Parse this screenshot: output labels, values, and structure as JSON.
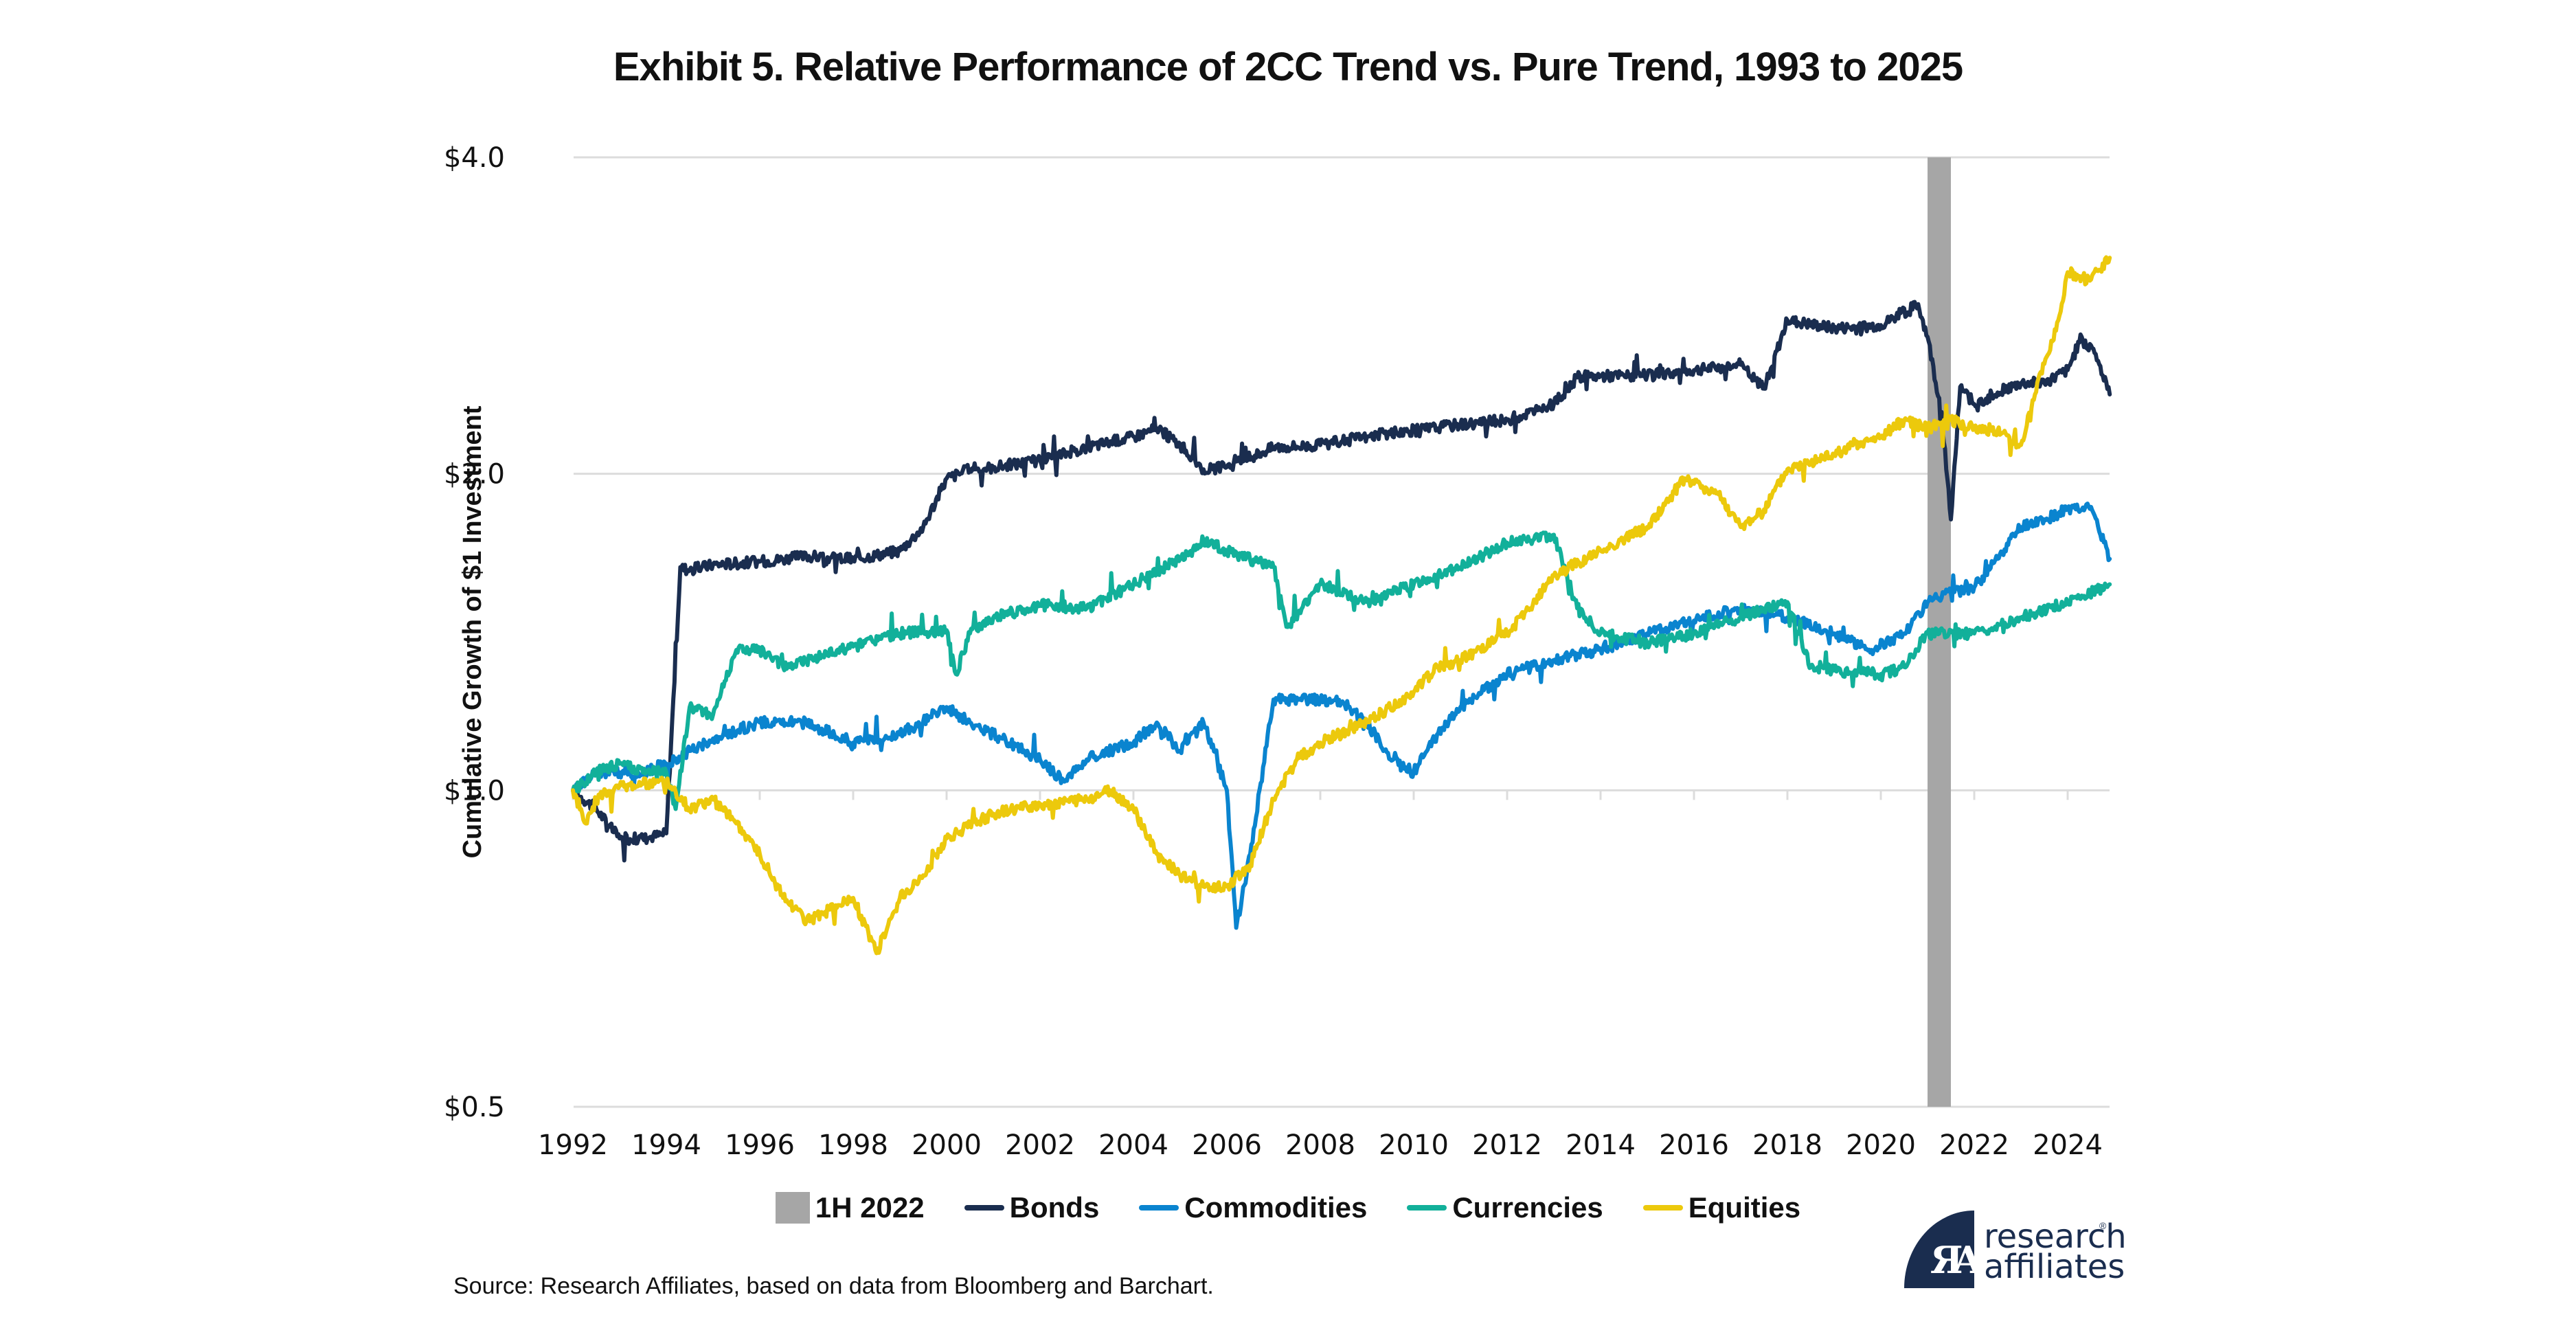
{
  "chart_data": {
    "type": "line",
    "title": "Exhibit 5. Relative Performance of 2CC Trend vs. Pure Trend, 1993 to 2025",
    "xlabel": "",
    "ylabel": "Cumulative Growth of $1 Investment",
    "y_scale": "log2",
    "ylim": [
      0.5,
      4.0
    ],
    "y_ticks": [
      {
        "value": 4.0,
        "label": "$4.0"
      },
      {
        "value": 2.0,
        "label": "$2.0"
      },
      {
        "value": 1.0,
        "label": "$1.0"
      },
      {
        "value": 0.5,
        "label": "$0.5"
      }
    ],
    "xlim": [
      1993.0,
      2025.9
    ],
    "x_ticks": [
      {
        "value": 1993,
        "label": "1992"
      },
      {
        "value": 1995,
        "label": "1994"
      },
      {
        "value": 1997,
        "label": "1996"
      },
      {
        "value": 1999,
        "label": "1998"
      },
      {
        "value": 2001,
        "label": "2000"
      },
      {
        "value": 2003,
        "label": "2002"
      },
      {
        "value": 2005,
        "label": "2004"
      },
      {
        "value": 2007,
        "label": "2006"
      },
      {
        "value": 2009,
        "label": "2008"
      },
      {
        "value": 2011,
        "label": "2010"
      },
      {
        "value": 2013,
        "label": "2012"
      },
      {
        "value": 2015,
        "label": "2014"
      },
      {
        "value": 2017,
        "label": "2016"
      },
      {
        "value": 2019,
        "label": "2018"
      },
      {
        "value": 2021,
        "label": "2020"
      },
      {
        "value": 2023,
        "label": "2022"
      },
      {
        "value": 2025,
        "label": "2024"
      }
    ],
    "grid": "horizontal",
    "shaded_region": {
      "name": "1H 2022",
      "x_start": 2022.0,
      "x_end": 2022.5,
      "color": "#a6a6a6"
    },
    "legend_position": "bottom",
    "series": [
      {
        "name": "Bonds",
        "color": "#1a2d4f",
        "points": [
          [
            1993,
            1.0
          ],
          [
            1993.5,
            0.96
          ],
          [
            1994,
            0.9
          ],
          [
            1994.5,
            0.9
          ],
          [
            1995,
            0.91
          ],
          [
            1995.3,
            1.63
          ],
          [
            1995.5,
            1.62
          ],
          [
            1996,
            1.64
          ],
          [
            1997,
            1.65
          ],
          [
            1998,
            1.67
          ],
          [
            1999,
            1.66
          ],
          [
            2000,
            1.69
          ],
          [
            2000.5,
            1.78
          ],
          [
            2001,
            1.98
          ],
          [
            2001.5,
            2.02
          ],
          [
            2002,
            2.03
          ],
          [
            2003,
            2.06
          ],
          [
            2004,
            2.12
          ],
          [
            2005,
            2.17
          ],
          [
            2005.5,
            2.21
          ],
          [
            2006,
            2.13
          ],
          [
            2006.5,
            2.02
          ],
          [
            2007,
            2.03
          ],
          [
            2008,
            2.12
          ],
          [
            2009,
            2.13
          ],
          [
            2010,
            2.17
          ],
          [
            2011,
            2.2
          ],
          [
            2012,
            2.23
          ],
          [
            2013,
            2.25
          ],
          [
            2014,
            2.33
          ],
          [
            2014.5,
            2.47
          ],
          [
            2015,
            2.48
          ],
          [
            2016,
            2.48
          ],
          [
            2017,
            2.51
          ],
          [
            2018,
            2.54
          ],
          [
            2018.5,
            2.41
          ],
          [
            2019,
            2.8
          ],
          [
            2020,
            2.75
          ],
          [
            2021,
            2.77
          ],
          [
            2021.8,
            2.9
          ],
          [
            2022.0,
            2.7
          ],
          [
            2022.3,
            2.29
          ],
          [
            2022.5,
            1.81
          ],
          [
            2022.7,
            2.42
          ],
          [
            2023,
            2.33
          ],
          [
            2023.5,
            2.39
          ],
          [
            2024,
            2.44
          ],
          [
            2024.5,
            2.44
          ],
          [
            2025,
            2.51
          ],
          [
            2025.3,
            2.7
          ],
          [
            2025.6,
            2.6
          ],
          [
            2025.9,
            2.38
          ]
        ]
      },
      {
        "name": "Commodities",
        "color": "#0a84cf",
        "points": [
          [
            1993,
            1.0
          ],
          [
            1993.5,
            1.04
          ],
          [
            1994,
            1.04
          ],
          [
            1994.5,
            1.04
          ],
          [
            1995,
            1.06
          ],
          [
            1995.5,
            1.09
          ],
          [
            1996,
            1.12
          ],
          [
            1997,
            1.16
          ],
          [
            1998,
            1.16
          ],
          [
            1999,
            1.11
          ],
          [
            2000,
            1.13
          ],
          [
            2001,
            1.2
          ],
          [
            2001.5,
            1.16
          ],
          [
            2002,
            1.13
          ],
          [
            2003,
            1.07
          ],
          [
            2003.5,
            1.02
          ],
          [
            2004,
            1.07
          ],
          [
            2005,
            1.11
          ],
          [
            2005.5,
            1.16
          ],
          [
            2006,
            1.09
          ],
          [
            2006.5,
            1.16
          ],
          [
            2007,
            1.0
          ],
          [
            2007.2,
            0.74
          ],
          [
            2007.5,
            0.87
          ],
          [
            2008,
            1.22
          ],
          [
            2009,
            1.22
          ],
          [
            2009.5,
            1.21
          ],
          [
            2010,
            1.16
          ],
          [
            2010.5,
            1.07
          ],
          [
            2011,
            1.04
          ],
          [
            2011.5,
            1.13
          ],
          [
            2012,
            1.2
          ],
          [
            2013,
            1.29
          ],
          [
            2014,
            1.33
          ],
          [
            2015,
            1.36
          ],
          [
            2016,
            1.41
          ],
          [
            2017,
            1.45
          ],
          [
            2018,
            1.49
          ],
          [
            2019,
            1.46
          ],
          [
            2020,
            1.41
          ],
          [
            2020.8,
            1.36
          ],
          [
            2021.5,
            1.41
          ],
          [
            2022,
            1.51
          ],
          [
            2022.5,
            1.54
          ],
          [
            2023,
            1.56
          ],
          [
            2023.5,
            1.66
          ],
          [
            2024,
            1.78
          ],
          [
            2024.5,
            1.81
          ],
          [
            2025,
            1.85
          ],
          [
            2025.5,
            1.86
          ],
          [
            2025.9,
            1.66
          ]
        ]
      },
      {
        "name": "Currencies",
        "color": "#12b09a",
        "points": [
          [
            1993,
            1.0
          ],
          [
            1993.5,
            1.04
          ],
          [
            1994,
            1.06
          ],
          [
            1994.5,
            1.04
          ],
          [
            1995,
            1.04
          ],
          [
            1995.2,
            0.96
          ],
          [
            1995.5,
            1.2
          ],
          [
            1996,
            1.18
          ],
          [
            1996.5,
            1.36
          ],
          [
            1997,
            1.36
          ],
          [
            1997.5,
            1.31
          ],
          [
            1998,
            1.33
          ],
          [
            1999,
            1.37
          ],
          [
            2000,
            1.41
          ],
          [
            2001,
            1.42
          ],
          [
            2001.2,
            1.29
          ],
          [
            2001.5,
            1.41
          ],
          [
            2002,
            1.46
          ],
          [
            2003,
            1.5
          ],
          [
            2004,
            1.49
          ],
          [
            2005,
            1.57
          ],
          [
            2006,
            1.66
          ],
          [
            2006.5,
            1.73
          ],
          [
            2007,
            1.69
          ],
          [
            2008,
            1.63
          ],
          [
            2008.3,
            1.43
          ],
          [
            2009,
            1.57
          ],
          [
            2010,
            1.51
          ],
          [
            2011,
            1.57
          ],
          [
            2012,
            1.63
          ],
          [
            2013,
            1.72
          ],
          [
            2014,
            1.75
          ],
          [
            2014.5,
            1.49
          ],
          [
            2015,
            1.41
          ],
          [
            2016,
            1.38
          ],
          [
            2017,
            1.41
          ],
          [
            2018,
            1.46
          ],
          [
            2019,
            1.51
          ],
          [
            2019.5,
            1.31
          ],
          [
            2020,
            1.3
          ],
          [
            2021,
            1.29
          ],
          [
            2021.5,
            1.31
          ],
          [
            2022,
            1.41
          ],
          [
            2023,
            1.41
          ],
          [
            2024,
            1.46
          ],
          [
            2025,
            1.51
          ],
          [
            2025.9,
            1.57
          ]
        ]
      },
      {
        "name": "Equities",
        "color": "#ecc90c",
        "points": [
          [
            1993,
            1.0
          ],
          [
            1993.3,
            0.93
          ],
          [
            1993.5,
            0.98
          ],
          [
            1994,
            1.01
          ],
          [
            1995,
            1.02
          ],
          [
            1995.5,
            0.96
          ],
          [
            1996,
            0.98
          ],
          [
            1996.5,
            0.93
          ],
          [
            1997,
            0.87
          ],
          [
            1997.5,
            0.79
          ],
          [
            1998,
            0.75
          ],
          [
            1998.5,
            0.77
          ],
          [
            1999,
            0.79
          ],
          [
            1999.5,
            0.7
          ],
          [
            2000,
            0.79
          ],
          [
            2000.5,
            0.83
          ],
          [
            2001,
            0.9
          ],
          [
            2002,
            0.95
          ],
          [
            2003,
            0.97
          ],
          [
            2004,
            0.98
          ],
          [
            2004.5,
            1.0
          ],
          [
            2005,
            0.96
          ],
          [
            2005.5,
            0.87
          ],
          [
            2006,
            0.83
          ],
          [
            2006.5,
            0.81
          ],
          [
            2007,
            0.81
          ],
          [
            2007.5,
            0.85
          ],
          [
            2008,
            0.98
          ],
          [
            2008.5,
            1.07
          ],
          [
            2009,
            1.11
          ],
          [
            2010,
            1.16
          ],
          [
            2011,
            1.24
          ],
          [
            2011.5,
            1.31
          ],
          [
            2012,
            1.33
          ],
          [
            2013,
            1.41
          ],
          [
            2013.5,
            1.49
          ],
          [
            2014,
            1.6
          ],
          [
            2015,
            1.69
          ],
          [
            2016,
            1.78
          ],
          [
            2016.8,
            1.98
          ],
          [
            2017.5,
            1.92
          ],
          [
            2018,
            1.78
          ],
          [
            2018.5,
            1.85
          ],
          [
            2019,
            2.02
          ],
          [
            2020,
            2.09
          ],
          [
            2021,
            2.17
          ],
          [
            2021.5,
            2.25
          ],
          [
            2022,
            2.21
          ],
          [
            2022.5,
            2.25
          ],
          [
            2023,
            2.21
          ],
          [
            2023.5,
            2.2
          ],
          [
            2024,
            2.13
          ],
          [
            2024.3,
            2.38
          ],
          [
            2024.8,
            2.8
          ],
          [
            2025,
            3.11
          ],
          [
            2025.5,
            3.06
          ],
          [
            2025.9,
            3.21
          ]
        ]
      }
    ]
  },
  "legend": {
    "items": [
      {
        "label": "1H 2022",
        "kind": "box",
        "color": "#a6a6a6"
      },
      {
        "label": "Bonds",
        "kind": "line",
        "color": "#1a2d4f"
      },
      {
        "label": "Commodities",
        "kind": "line",
        "color": "#0a84cf"
      },
      {
        "label": "Currencies",
        "kind": "line",
        "color": "#12b09a"
      },
      {
        "label": "Equities",
        "kind": "line",
        "color": "#ecc90c"
      }
    ]
  },
  "footer": {
    "source": "Source: Research Affiliates, based on data from Bloomberg and Barchart.",
    "logo_line1": "research",
    "logo_line2": "affiliates",
    "logo_registered": "®",
    "logo_mark": "ЯA"
  }
}
